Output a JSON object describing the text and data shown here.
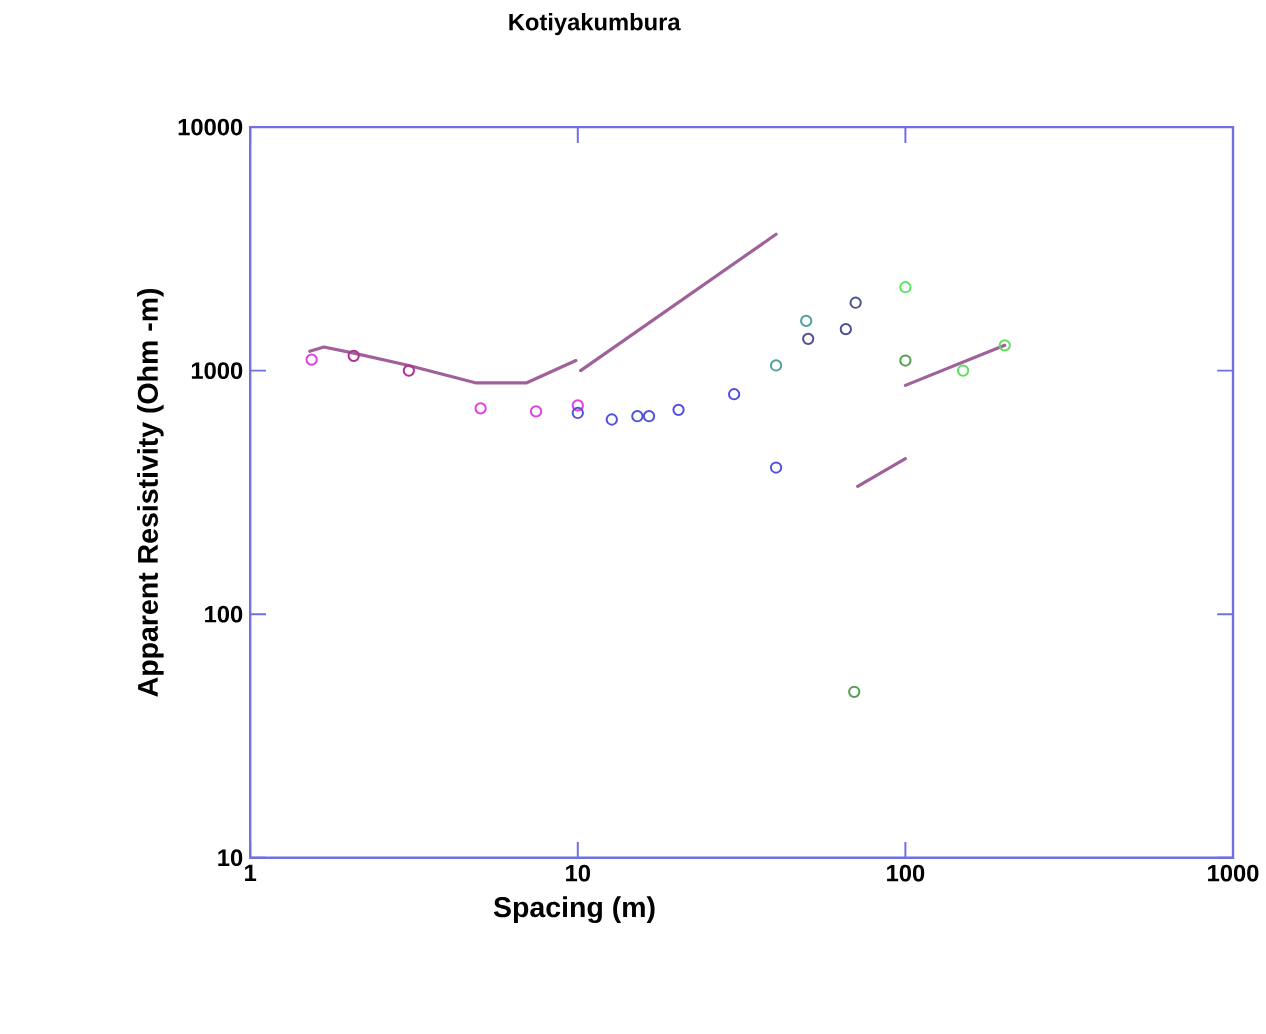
{
  "chart_data": {
    "type": "scatter",
    "title": "Kotiyakumbura",
    "xlabel": "Spacing (m)",
    "ylabel": "Apparent Resistivity (Ohm -m)",
    "log": "xy",
    "xlim": [
      1,
      1000
    ],
    "ylim": [
      10,
      10000
    ],
    "xticks": [
      1,
      10,
      100,
      1000
    ],
    "yticks": [
      10,
      100,
      1000,
      10000
    ],
    "marker": "circle",
    "grid": false,
    "series": [
      {
        "type": "line",
        "marker": "none",
        "color": "#a0609a",
        "x": [
          1.52,
          1.68,
          2.07,
          3.05,
          4.9,
          6.96,
          9.87,
          null,
          10.2,
          40.3,
          null,
          71.5,
          100,
          null,
          100,
          201
        ],
        "values": [
          1200,
          1250,
          1180,
          1050,
          890,
          890,
          1100,
          null,
          1000,
          3630,
          null,
          335,
          435,
          null,
          870,
          1270
        ]
      },
      {
        "type": "scatter",
        "color": "#e040e0",
        "x": [
          1.54,
          5.05,
          7.46,
          10
        ],
        "values": [
          1110,
          700,
          680,
          720
        ]
      },
      {
        "type": "scatter",
        "color": "#b03090",
        "x": [
          2.07,
          3.05
        ],
        "values": [
          1150,
          1000
        ]
      },
      {
        "type": "scatter",
        "color": "#5050e0",
        "x": [
          10,
          12.7,
          15.2,
          16.5,
          20.3,
          30,
          40.3
        ],
        "values": [
          670,
          630,
          650,
          650,
          690,
          800,
          400
        ]
      },
      {
        "type": "scatter",
        "color": "#505090",
        "x": [
          50.5,
          65.8,
          70.5
        ],
        "values": [
          1350,
          1480,
          1900
        ]
      },
      {
        "type": "scatter",
        "color": "#50a0a0",
        "x": [
          40.3,
          49.8
        ],
        "values": [
          1050,
          1600
        ]
      },
      {
        "color": "#60e060",
        "x": [
          100,
          150,
          201
        ],
        "values": [
          2200,
          1000,
          1270
        ]
      },
      {
        "color": "#50a050",
        "x": [
          100,
          69.8
        ],
        "values": [
          1100,
          48
        ]
      }
    ]
  }
}
